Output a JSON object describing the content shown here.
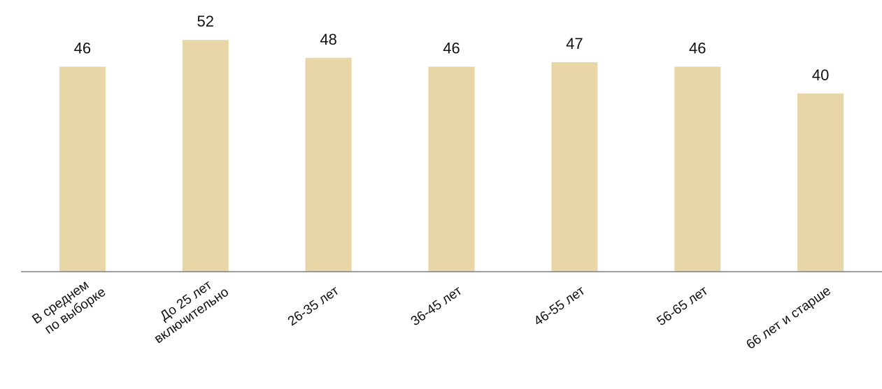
{
  "chart_data": {
    "type": "bar",
    "categories": [
      [
        "В среднем",
        "по выборке"
      ],
      [
        "До 25 лет",
        "включительно"
      ],
      [
        "26-35 лет"
      ],
      [
        "36-45 лет"
      ],
      [
        "46-55 лет"
      ],
      [
        "56-65 лет"
      ],
      [
        "66 лет и старше"
      ]
    ],
    "values": [
      46,
      52,
      48,
      46,
      47,
      46,
      40
    ],
    "value_labels": [
      "46",
      "52",
      "48",
      "46",
      "47",
      "46",
      "40"
    ],
    "title": "",
    "xlabel": "",
    "ylabel": "",
    "ylim": [
      0,
      55
    ],
    "grid": false,
    "legend": "none",
    "colors": {
      "bar": "#E8D6A6",
      "axis": "#7F7F7F",
      "text": "#111111"
    }
  }
}
